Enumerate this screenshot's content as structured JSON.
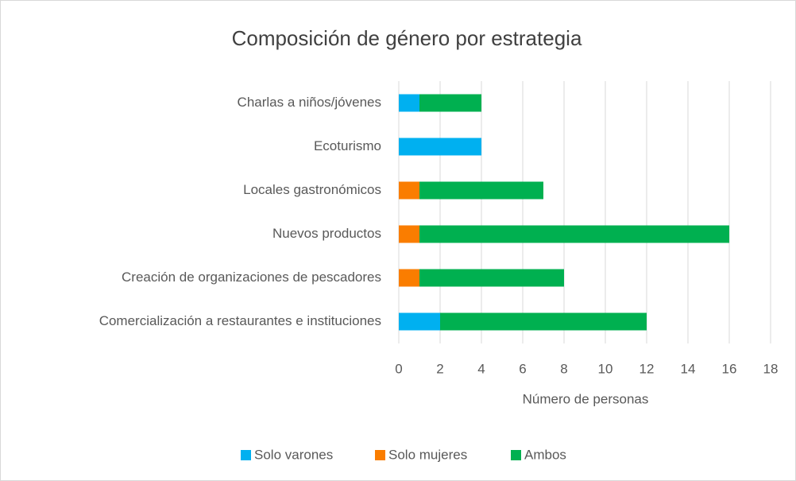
{
  "chart_data": {
    "type": "stacked-barh",
    "title": "Composición de género por estrategia",
    "xlabel": "Número de personas",
    "categories": [
      "Charlas a niños/jóvenes",
      "Ecoturismo",
      "Locales gastronómicos",
      "Nuevos productos",
      "Creación de organizaciones de pescadores",
      "Comercialización a restaurantes e instituciones"
    ],
    "series": [
      {
        "name": "Solo varones",
        "color": "#00b0f0",
        "values": [
          1,
          4,
          0,
          0,
          0,
          2
        ]
      },
      {
        "name": "Solo mujeres",
        "color": "#fa7d00",
        "values": [
          0,
          0,
          1,
          1,
          1,
          0
        ]
      },
      {
        "name": "Ambos",
        "color": "#00b050",
        "values": [
          3,
          0,
          6,
          15,
          7,
          10
        ]
      }
    ],
    "xlim": [
      0,
      18
    ],
    "xticks": [
      0,
      2,
      4,
      6,
      8,
      10,
      12,
      14,
      16,
      18
    ],
    "grid": true,
    "legend": "bottom"
  }
}
